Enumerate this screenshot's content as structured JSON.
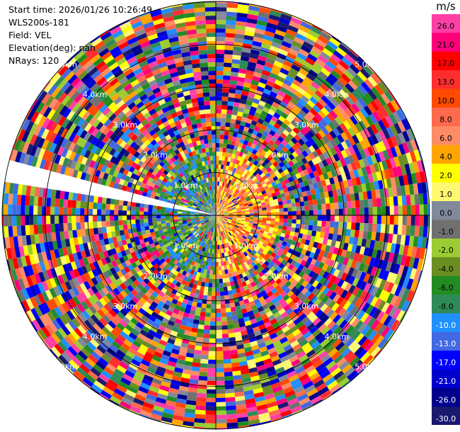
{
  "header": {
    "start_time": "Start time: 2026/01/26 10:26:49",
    "instrument": "WLS200s-181",
    "field": "Field: VEL",
    "elevation": "Elevation(deg): nan",
    "nrays": "NRays: 120"
  },
  "chart_data": {
    "type": "heatmap",
    "projection": "polar-ppi",
    "field": "VEL",
    "n_rays": 120,
    "max_range_km": 5.0,
    "range_ring_labels": [
      "1.0km",
      "2.0km",
      "3.0km",
      "4.0km",
      "5.0km"
    ],
    "range_rings_km": [
      1,
      2,
      3,
      4,
      5
    ],
    "missing_azimuth_sector_deg": [
      278,
      286
    ],
    "pattern": {
      "inner_core_km": 1.5,
      "east_side_near": "positive velocities (yellow/orange)",
      "west_side_near": "negative velocities (green/blue)",
      "far_range": "noise across full scale"
    },
    "colorbar": {
      "unit": "m/s",
      "tick_labels": [
        "26.0",
        "21.0",
        "17.0",
        "13.0",
        "10.0",
        "8.0",
        "6.0",
        "4.0",
        "2.0",
        "1.0",
        "0.0",
        "-1.0",
        "-2.0",
        "-4.0",
        "-6.0",
        "-8.0",
        "-10.0",
        "-13.0",
        "-17.0",
        "-21.0",
        "-26.0",
        "-30.0"
      ],
      "colors": [
        "#ff3fa6",
        "#ff007b",
        "#ff0000",
        "#ff2d2d",
        "#ff4a00",
        "#ff6a4d",
        "#ff8c66",
        "#ffa500",
        "#ffff00",
        "#fff870",
        "#808a9a",
        "#707070",
        "#9bcc33",
        "#6b8e23",
        "#228b22",
        "#2e8b57",
        "#1e90ff",
        "#4169e1",
        "#0000ff",
        "#0000cd",
        "#00008b",
        "#191970"
      ]
    }
  }
}
